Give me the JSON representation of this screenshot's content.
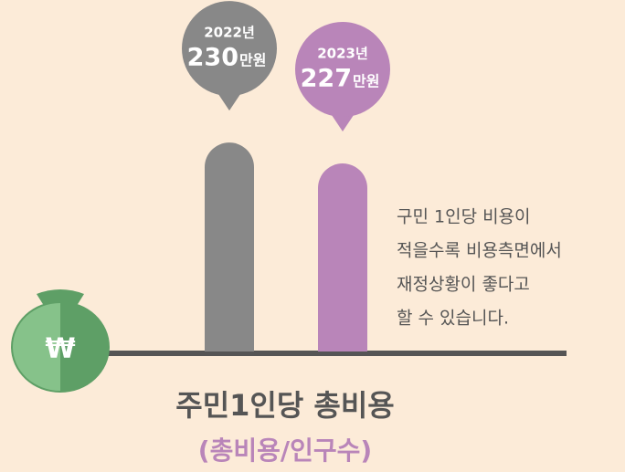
{
  "chart_data": {
    "type": "bar",
    "categories": [
      "2022년",
      "2023년"
    ],
    "values": [
      230,
      227
    ],
    "unit": "만원",
    "colors": [
      "#888888",
      "#b985b9"
    ],
    "ylim": [
      200,
      235
    ],
    "note_lines": [
      "구민 1인당 비용이",
      "적을수록 비용측면에서",
      "재정상황이 좋다고",
      "할 수 있습니다."
    ],
    "title": "주민1인당 총비용",
    "subtitle": "(총비용/인구수)",
    "icon_text": "₩"
  }
}
